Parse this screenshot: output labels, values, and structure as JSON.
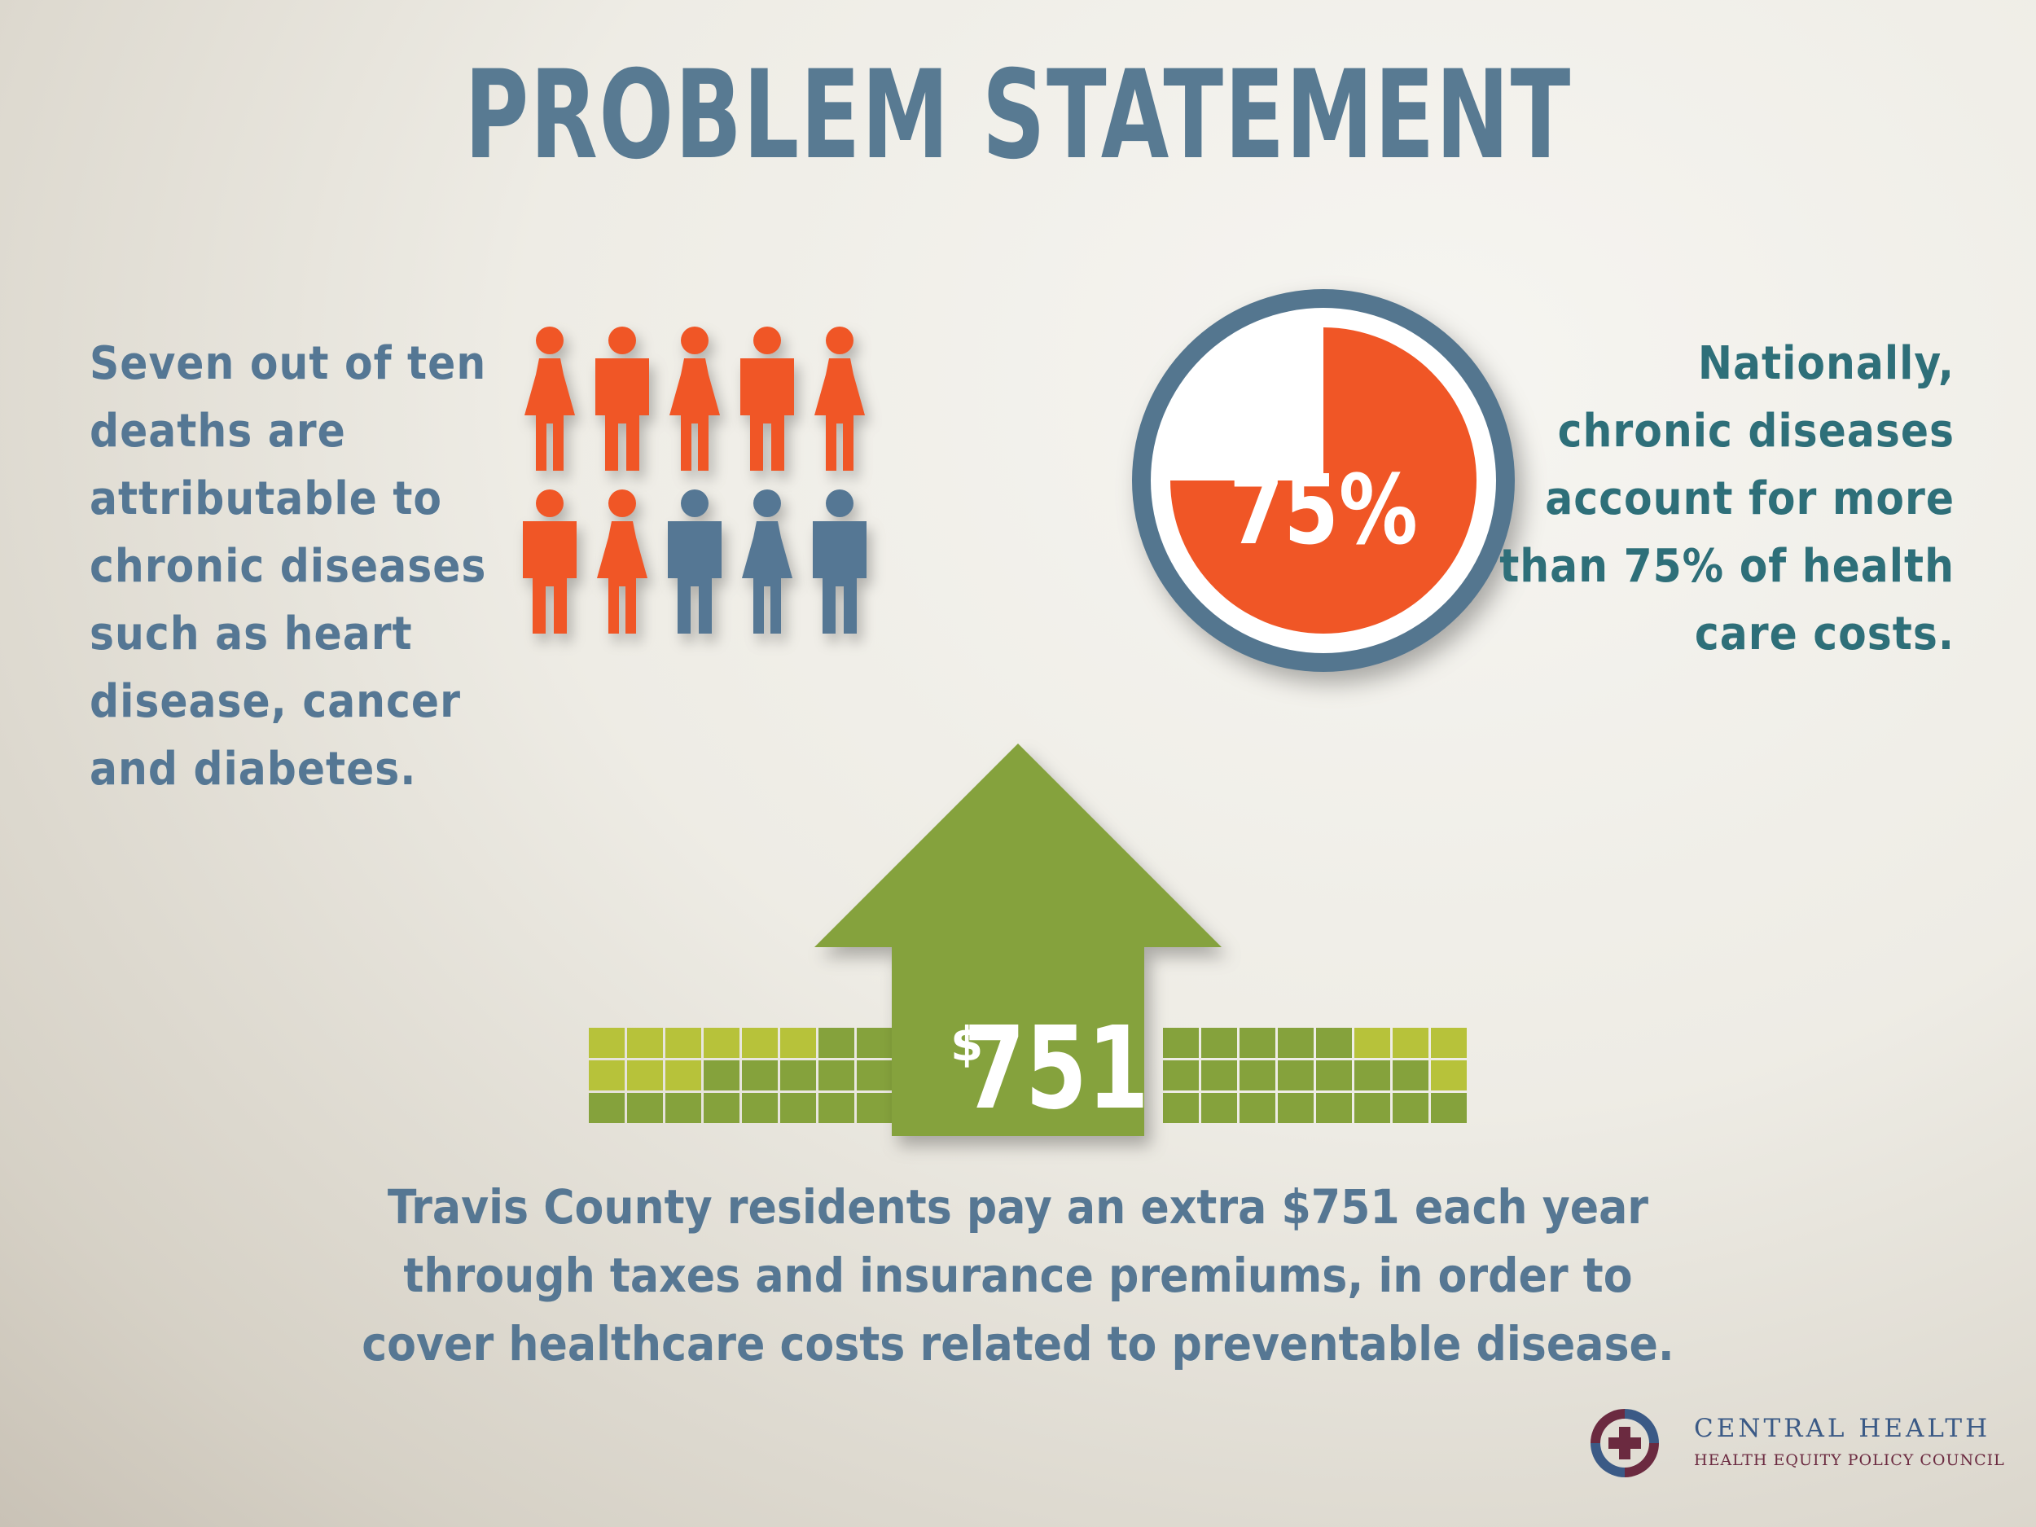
{
  "title": "PROBLEM STATEMENT",
  "left_stat": {
    "lines": [
      "Seven out of ten",
      "deaths are",
      "attributable to",
      "chronic diseases",
      "such as heart",
      "disease, cancer",
      "and diabetes."
    ],
    "people_total": 10,
    "people_highlighted": 7
  },
  "right_stat": {
    "lines": [
      "Nationally,",
      "chronic diseases",
      "account for more",
      "than 75% of health",
      "care costs."
    ],
    "pie_label": "75%",
    "pie_fraction": 0.75
  },
  "arrow": {
    "dollar_sign": "$",
    "amount": "751"
  },
  "bottom_text": {
    "lines": [
      "Travis County residents pay an extra $751 each year",
      "through taxes and insurance premiums, in order to",
      "cover healthcare costs related to preventable disease."
    ]
  },
  "logo": {
    "name": "CENTRAL HEALTH",
    "subtitle": "HEALTH EQUITY POLICY COUNCIL"
  },
  "colors": {
    "title": "#587a92",
    "orange": "#f05626",
    "slate": "#557794",
    "teal": "#2e6f79",
    "green": "#85a23c",
    "lime": "#b7c23a",
    "ring": "#54768f"
  }
}
